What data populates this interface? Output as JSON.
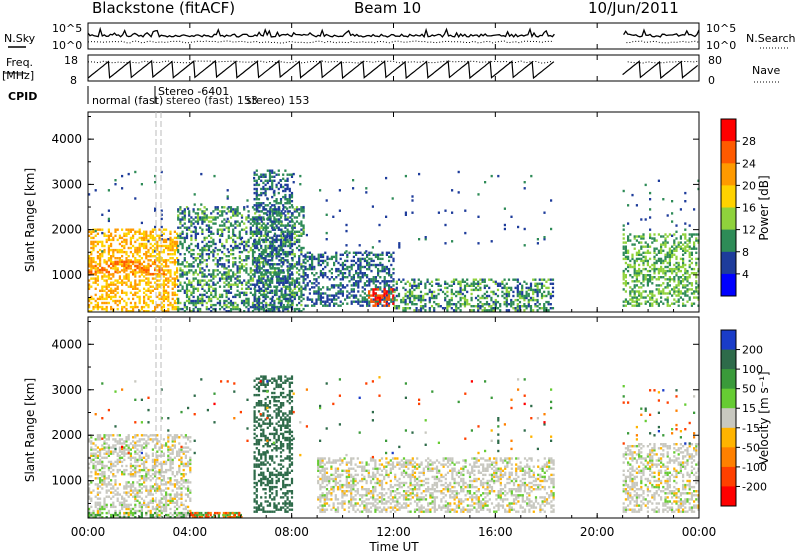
{
  "header": {
    "station": "Blackstone (fitACF)",
    "beam": "Beam 10",
    "date": "10/Jun/2011"
  },
  "panels": {
    "noise": {
      "left_label": "N.Sky",
      "right_label": "N.Search",
      "left_ticks": [
        "10^5",
        "10^0"
      ],
      "right_ticks": [
        "10^5",
        "10^0"
      ]
    },
    "freq": {
      "left_label_1": "Freq.",
      "left_label_2": "[MHz]",
      "right_label": "Nave",
      "left_ticks": [
        "18",
        "8"
      ],
      "right_ticks": [
        "80",
        "0"
      ]
    },
    "cpid": {
      "label": "CPID",
      "entries": [
        "Stereo -6401",
        "normal (fast)",
        "stereo (fast) 153",
        "stereo) 153"
      ]
    }
  },
  "axes": {
    "xlabel": "Time UT",
    "ylabel_power": "Slant Range [km]",
    "ylabel_velocity": "Slant Range [km]",
    "x_ticks": [
      "00:00",
      "04:00",
      "08:00",
      "12:00",
      "16:00",
      "20:00",
      "00:00"
    ],
    "y_ticks": [
      "1000",
      "2000",
      "3000",
      "4000"
    ]
  },
  "colorbars": {
    "power": {
      "label": "Power [dB]",
      "ticks": [
        "28",
        "24",
        "20",
        "16",
        "12",
        "8",
        "4"
      ],
      "colors": [
        "#ff0000",
        "#ff5a00",
        "#ff9a00",
        "#ffd200",
        "#8fd23c",
        "#2e8b57",
        "#1e3c9b",
        "#0000ff"
      ]
    },
    "velocity": {
      "label": "Velocity [m s⁻¹]",
      "ticks": [
        "200",
        "100",
        "50",
        "15",
        "-15",
        "-50",
        "-100",
        "-200"
      ],
      "colors": [
        "#1a3cc8",
        "#2e6b4a",
        "#3a9a3a",
        "#66cc33",
        "#c8c8c0",
        "#ffb400",
        "#ff8000",
        "#ff4000",
        "#ff0000"
      ]
    }
  },
  "chart_data": {
    "type": "heatmap",
    "title": "Blackstone (fitACF) Beam 10 10/Jun/2011",
    "xlabel": "Time UT",
    "ylabel": "Slant Range [km]",
    "xlim": [
      0,
      24
    ],
    "ylim": [
      180,
      4600
    ],
    "data_gaps_hours": [
      [
        18.33,
        21.0
      ]
    ],
    "power_scatter_regions": [
      {
        "t0": 0.0,
        "t1": 3.5,
        "r0": 180,
        "r1": 2000,
        "level_db": 20
      },
      {
        "t0": 0.0,
        "t1": 3.0,
        "r0": 1000,
        "r1": 1300,
        "level_db": 24
      },
      {
        "t0": 3.5,
        "t1": 8.5,
        "r0": 180,
        "r1": 2500,
        "level_db": 10
      },
      {
        "t0": 6.5,
        "t1": 8.0,
        "r0": 180,
        "r1": 3300,
        "level_db": 8
      },
      {
        "t0": 8.5,
        "t1": 12.0,
        "r0": 300,
        "r1": 1500,
        "level_db": 8
      },
      {
        "t0": 11.0,
        "t1": 12.0,
        "r0": 300,
        "r1": 700,
        "level_db": 28
      },
      {
        "t0": 12.0,
        "t1": 18.3,
        "r0": 200,
        "r1": 900,
        "level_db": 10
      },
      {
        "t0": 21.0,
        "t1": 24.0,
        "r0": 300,
        "r1": 1900,
        "level_db": 12
      }
    ],
    "velocity_scatter_regions": [
      {
        "t0": 0.0,
        "t1": 4.0,
        "r0": 180,
        "r1": 2000,
        "velocity_ms": 0
      },
      {
        "t0": 0.0,
        "t1": 6.0,
        "r0": 180,
        "r1": 300,
        "velocity_ms": 60
      },
      {
        "t0": 4.0,
        "t1": 6.0,
        "r0": 180,
        "r1": 300,
        "velocity_ms": -100
      },
      {
        "t0": 6.5,
        "t1": 8.0,
        "r0": 300,
        "r1": 3300,
        "velocity_ms": 150
      },
      {
        "t0": 9.0,
        "t1": 18.3,
        "r0": 300,
        "r1": 1500,
        "velocity_ms": 0
      },
      {
        "t0": 21.0,
        "t1": 24.0,
        "r0": 300,
        "r1": 1800,
        "velocity_ms": 0
      }
    ]
  }
}
